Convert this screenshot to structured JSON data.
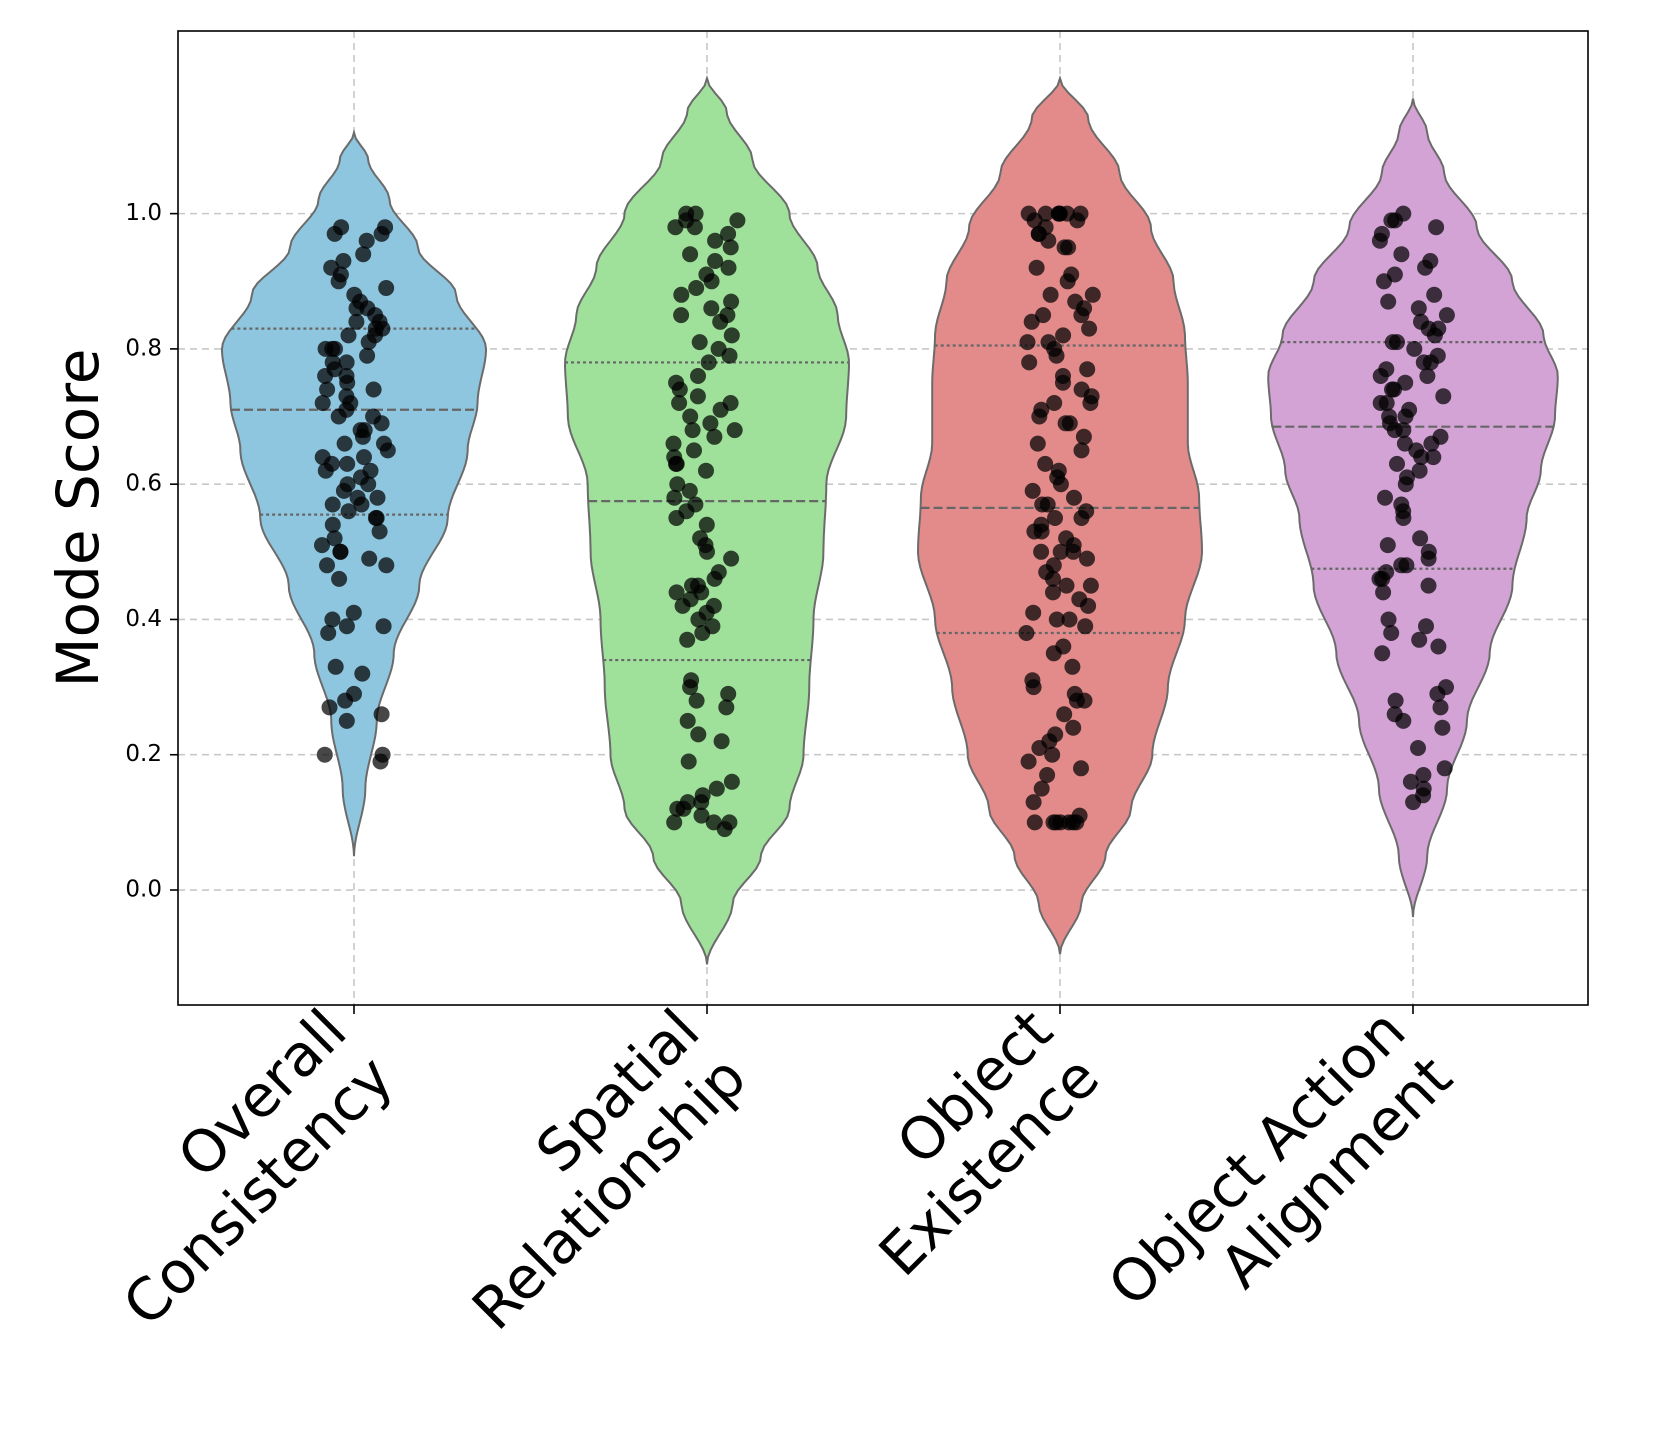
{
  "chart_data": {
    "type": "violin",
    "title": "",
    "xlabel": "",
    "ylabel": "Mode Score",
    "ylim": [
      -0.17,
      1.27
    ],
    "yticks": [
      "0.0",
      "0.2",
      "0.4",
      "0.6",
      "0.8",
      "1.0"
    ],
    "grid": true,
    "categories": [
      {
        "key": "overall",
        "lines": [
          "Overall",
          "Consistency"
        ],
        "color": "#8fc6df",
        "range": [
          0.05,
          1.12
        ],
        "quartiles": [
          0.555,
          0.71,
          0.83
        ],
        "width_profile": [
          [
            0.05,
            0.0
          ],
          [
            0.15,
            0.08
          ],
          [
            0.25,
            0.16
          ],
          [
            0.35,
            0.28
          ],
          [
            0.45,
            0.46
          ],
          [
            0.55,
            0.66
          ],
          [
            0.65,
            0.8
          ],
          [
            0.72,
            0.87
          ],
          [
            0.8,
            0.93
          ],
          [
            0.88,
            0.72
          ],
          [
            0.95,
            0.45
          ],
          [
            1.02,
            0.25
          ],
          [
            1.08,
            0.1
          ],
          [
            1.12,
            0.0
          ]
        ],
        "points": [
          0.19,
          0.2,
          0.2,
          0.25,
          0.26,
          0.27,
          0.28,
          0.29,
          0.32,
          0.33,
          0.38,
          0.39,
          0.39,
          0.4,
          0.41,
          0.46,
          0.48,
          0.49,
          0.5,
          0.5,
          0.51,
          0.53,
          0.54,
          0.55,
          0.56,
          0.57,
          0.58,
          0.59,
          0.6,
          0.61,
          0.62,
          0.63,
          0.63,
          0.64,
          0.65,
          0.66,
          0.67,
          0.68,
          0.69,
          0.7,
          0.71,
          0.72,
          0.73,
          0.74,
          0.75,
          0.76,
          0.77,
          0.78,
          0.79,
          0.8,
          0.8,
          0.81,
          0.82,
          0.83,
          0.84,
          0.85,
          0.86,
          0.87,
          0.88,
          0.89,
          0.9,
          0.91,
          0.92,
          0.93,
          0.94,
          0.96,
          0.97,
          0.97,
          0.98,
          0.98,
          0.84,
          0.78,
          0.72,
          0.66,
          0.6,
          0.55,
          0.86,
          0.82,
          0.76,
          0.62,
          0.58,
          0.52,
          0.48,
          0.74,
          0.68,
          0.64,
          0.57,
          0.83,
          0.8,
          0.7
        ]
      },
      {
        "key": "spatial",
        "lines": [
          "Spatial",
          "Relationship"
        ],
        "color": "#9fe19a",
        "range": [
          -0.11,
          1.2
        ],
        "quartiles": [
          0.34,
          0.575,
          0.78
        ],
        "width_profile": [
          [
            -0.11,
            0.0
          ],
          [
            -0.02,
            0.18
          ],
          [
            0.05,
            0.38
          ],
          [
            0.12,
            0.58
          ],
          [
            0.2,
            0.68
          ],
          [
            0.3,
            0.72
          ],
          [
            0.4,
            0.75
          ],
          [
            0.5,
            0.82
          ],
          [
            0.6,
            0.84
          ],
          [
            0.7,
            0.98
          ],
          [
            0.78,
            1.0
          ],
          [
            0.85,
            0.92
          ],
          [
            0.92,
            0.78
          ],
          [
            1.0,
            0.58
          ],
          [
            1.08,
            0.32
          ],
          [
            1.15,
            0.14
          ],
          [
            1.2,
            0.0
          ]
        ],
        "points": [
          0.09,
          0.1,
          0.1,
          0.11,
          0.12,
          0.13,
          0.14,
          0.15,
          0.16,
          0.19,
          0.22,
          0.23,
          0.25,
          0.27,
          0.28,
          0.29,
          0.31,
          0.37,
          0.38,
          0.39,
          0.4,
          0.41,
          0.42,
          0.43,
          0.44,
          0.45,
          0.45,
          0.46,
          0.47,
          0.49,
          0.5,
          0.51,
          0.52,
          0.54,
          0.56,
          0.57,
          0.58,
          0.59,
          0.6,
          0.62,
          0.63,
          0.64,
          0.65,
          0.66,
          0.67,
          0.68,
          0.69,
          0.7,
          0.71,
          0.72,
          0.73,
          0.74,
          0.75,
          0.76,
          0.78,
          0.79,
          0.8,
          0.81,
          0.82,
          0.84,
          0.85,
          0.86,
          0.87,
          0.88,
          0.89,
          0.9,
          0.92,
          0.93,
          0.94,
          0.96,
          0.97,
          0.98,
          0.99,
          1.0,
          1.0,
          0.13,
          0.42,
          0.68,
          0.72,
          0.98,
          0.1,
          0.3,
          0.55,
          0.85,
          0.95,
          0.12,
          0.44,
          0.63,
          0.91,
          0.99
        ]
      },
      {
        "key": "existence",
        "lines": [
          "Object",
          "Existence"
        ],
        "color": "#e38b8b",
        "range": [
          -0.095,
          1.2
        ],
        "quartiles": [
          0.38,
          0.565,
          0.805
        ],
        "width_profile": [
          [
            -0.095,
            0.0
          ],
          [
            -0.02,
            0.15
          ],
          [
            0.05,
            0.32
          ],
          [
            0.12,
            0.5
          ],
          [
            0.2,
            0.65
          ],
          [
            0.3,
            0.76
          ],
          [
            0.4,
            0.88
          ],
          [
            0.5,
            1.0
          ],
          [
            0.58,
            0.98
          ],
          [
            0.66,
            0.9
          ],
          [
            0.75,
            0.9
          ],
          [
            0.82,
            0.88
          ],
          [
            0.9,
            0.8
          ],
          [
            0.98,
            0.64
          ],
          [
            1.06,
            0.42
          ],
          [
            1.14,
            0.2
          ],
          [
            1.2,
            0.0
          ]
        ],
        "points": [
          0.1,
          0.1,
          0.1,
          0.1,
          0.1,
          0.1,
          0.1,
          0.11,
          0.13,
          0.15,
          0.17,
          0.18,
          0.19,
          0.2,
          0.21,
          0.22,
          0.23,
          0.24,
          0.26,
          0.28,
          0.29,
          0.3,
          0.31,
          0.33,
          0.35,
          0.36,
          0.38,
          0.39,
          0.4,
          0.41,
          0.42,
          0.43,
          0.44,
          0.45,
          0.46,
          0.47,
          0.48,
          0.49,
          0.5,
          0.5,
          0.51,
          0.52,
          0.53,
          0.54,
          0.55,
          0.55,
          0.56,
          0.57,
          0.58,
          0.59,
          0.6,
          0.62,
          0.63,
          0.65,
          0.66,
          0.67,
          0.69,
          0.7,
          0.71,
          0.72,
          0.73,
          0.74,
          0.76,
          0.77,
          0.78,
          0.79,
          0.8,
          0.81,
          0.82,
          0.83,
          0.84,
          0.85,
          0.86,
          0.87,
          0.88,
          0.9,
          0.91,
          0.92,
          0.95,
          0.96,
          0.97,
          0.98,
          0.99,
          1.0,
          1.0,
          1.0,
          1.0,
          1.0,
          1.0,
          1.0,
          0.4,
          0.5,
          0.57,
          0.72,
          0.81,
          0.85,
          0.97,
          0.99,
          0.28,
          0.45,
          0.53,
          0.61,
          0.69,
          0.75,
          0.88,
          0.95
        ]
      },
      {
        "key": "action",
        "lines": [
          "Object Action",
          "Alignment"
        ],
        "color": "#d4a3d6",
        "range": [
          -0.04,
          1.17
        ],
        "quartiles": [
          0.475,
          0.685,
          0.81
        ],
        "width_profile": [
          [
            -0.04,
            0.0
          ],
          [
            0.05,
            0.1
          ],
          [
            0.15,
            0.24
          ],
          [
            0.25,
            0.38
          ],
          [
            0.35,
            0.54
          ],
          [
            0.45,
            0.7
          ],
          [
            0.55,
            0.8
          ],
          [
            0.62,
            0.9
          ],
          [
            0.7,
            1.0
          ],
          [
            0.76,
            1.02
          ],
          [
            0.82,
            0.92
          ],
          [
            0.9,
            0.7
          ],
          [
            0.98,
            0.45
          ],
          [
            1.06,
            0.22
          ],
          [
            1.12,
            0.1
          ],
          [
            1.17,
            0.0
          ]
        ],
        "points": [
          0.13,
          0.14,
          0.15,
          0.16,
          0.17,
          0.18,
          0.21,
          0.24,
          0.25,
          0.26,
          0.27,
          0.28,
          0.29,
          0.3,
          0.35,
          0.36,
          0.37,
          0.38,
          0.39,
          0.4,
          0.44,
          0.45,
          0.46,
          0.47,
          0.48,
          0.49,
          0.5,
          0.51,
          0.52,
          0.56,
          0.57,
          0.58,
          0.6,
          0.61,
          0.62,
          0.63,
          0.64,
          0.65,
          0.66,
          0.67,
          0.68,
          0.69,
          0.7,
          0.71,
          0.72,
          0.73,
          0.74,
          0.75,
          0.76,
          0.77,
          0.78,
          0.79,
          0.8,
          0.81,
          0.82,
          0.83,
          0.84,
          0.85,
          0.86,
          0.87,
          0.88,
          0.9,
          0.91,
          0.92,
          0.93,
          0.94,
          0.96,
          0.97,
          0.98,
          0.99,
          1.0,
          0.99,
          0.78,
          0.72,
          0.66,
          0.46,
          0.83,
          0.76,
          0.7,
          0.64,
          0.55,
          0.48,
          0.81,
          0.74,
          0.68
        ]
      }
    ]
  }
}
